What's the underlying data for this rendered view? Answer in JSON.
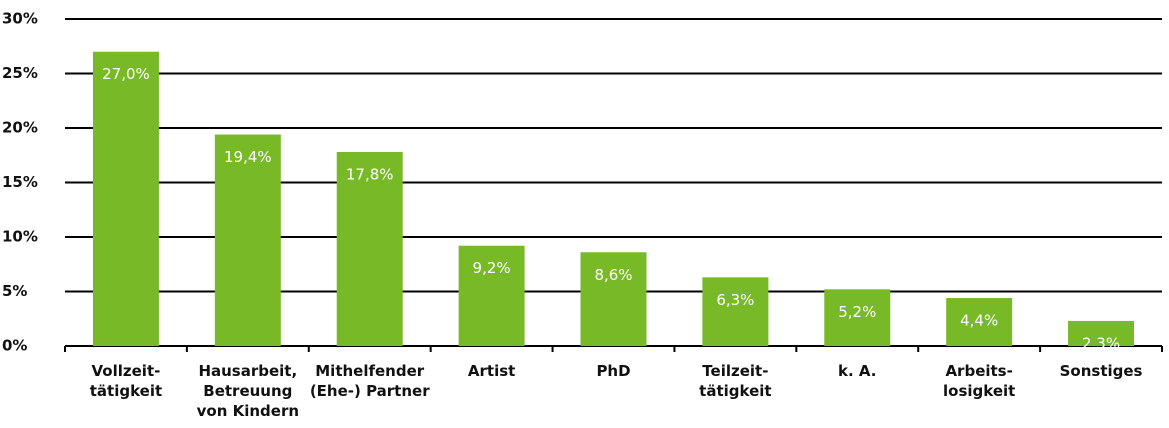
{
  "chart_data": {
    "type": "bar",
    "categories": [
      "Vollzeit-\ntätigkeit",
      "Hausarbeit,\nBetreuung\nvon Kindern",
      "Mithelfender\n(Ehe-) Partner",
      "Artist",
      "PhD",
      "Teilzeit-\ntätigkeit",
      "k. A.",
      "Arbeits-\nlosigkeit",
      "Sonstiges"
    ],
    "values": [
      27.0,
      19.4,
      17.8,
      9.2,
      8.6,
      6.3,
      5.2,
      4.4,
      2.3
    ],
    "value_labels": [
      "27,0%",
      "19,4%",
      "17,8%",
      "9,2%",
      "8,6%",
      "6,3%",
      "5,2%",
      "4,4%",
      "2,3%"
    ],
    "color": "#78b928",
    "ylim": [
      0,
      30
    ],
    "yticks": [
      {
        "value": 0,
        "label": "0%"
      },
      {
        "value": 5,
        "label": "5%"
      },
      {
        "value": 10,
        "label": "10%"
      },
      {
        "value": 15,
        "label": "15%"
      },
      {
        "value": 20,
        "label": "20%"
      },
      {
        "value": 25,
        "label": "25%"
      },
      {
        "value": 30,
        "label": "30%"
      }
    ],
    "grid": true
  }
}
